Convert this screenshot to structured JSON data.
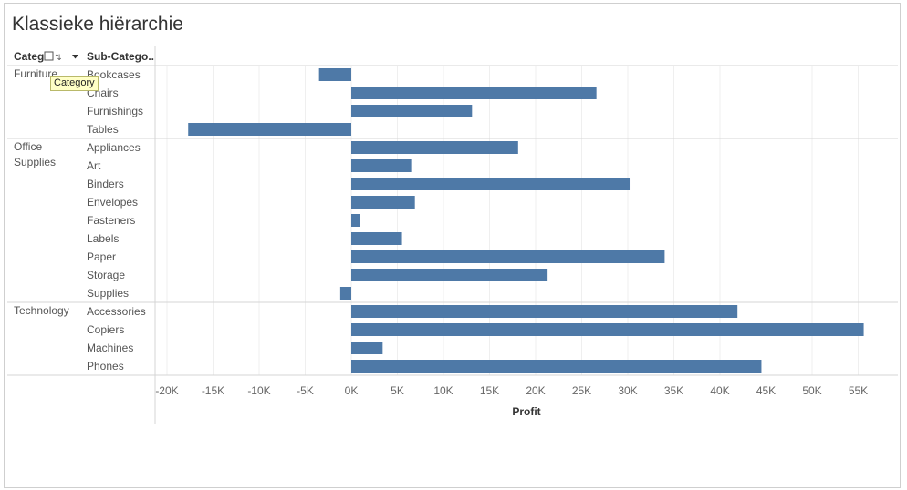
{
  "title": "Klassieke hiërarchie",
  "headers": {
    "category": "Categ",
    "subcategory": "Sub-Catego.."
  },
  "tooltip": "Category",
  "colors": {
    "bar": "#4e79a7",
    "grid": "#efefef",
    "line": "#d4d4d4"
  },
  "chart_data": {
    "type": "bar",
    "orientation": "horizontal",
    "title": "Klassieke hiërarchie",
    "xlabel": "Profit",
    "ylabel": "",
    "xlim": [
      -21000,
      56500
    ],
    "xticks": [
      "-20K",
      "-15K",
      "-10K",
      "-5K",
      "0K",
      "5K",
      "10K",
      "15K",
      "20K",
      "25K",
      "30K",
      "35K",
      "40K",
      "45K",
      "50K",
      "55K"
    ],
    "grid": true,
    "groups": [
      {
        "category_lines": [
          "Furniture"
        ],
        "items": [
          {
            "subcategory": "Bookcases",
            "value": -3500
          },
          {
            "subcategory": "Chairs",
            "value": 26600
          },
          {
            "subcategory": "Furnishings",
            "value": 13100
          },
          {
            "subcategory": "Tables",
            "value": -17700
          }
        ]
      },
      {
        "category_lines": [
          "Office",
          "Supplies"
        ],
        "items": [
          {
            "subcategory": "Appliances",
            "value": 18100
          },
          {
            "subcategory": "Art",
            "value": 6500
          },
          {
            "subcategory": "Binders",
            "value": 30200
          },
          {
            "subcategory": "Envelopes",
            "value": 6900
          },
          {
            "subcategory": "Fasteners",
            "value": 950
          },
          {
            "subcategory": "Labels",
            "value": 5500
          },
          {
            "subcategory": "Paper",
            "value": 34000
          },
          {
            "subcategory": "Storage",
            "value": 21300
          },
          {
            "subcategory": "Supplies",
            "value": -1200
          }
        ]
      },
      {
        "category_lines": [
          "Technology"
        ],
        "items": [
          {
            "subcategory": "Accessories",
            "value": 41900
          },
          {
            "subcategory": "Copiers",
            "value": 55600
          },
          {
            "subcategory": "Machines",
            "value": 3400
          },
          {
            "subcategory": "Phones",
            "value": 44500
          }
        ]
      }
    ]
  }
}
